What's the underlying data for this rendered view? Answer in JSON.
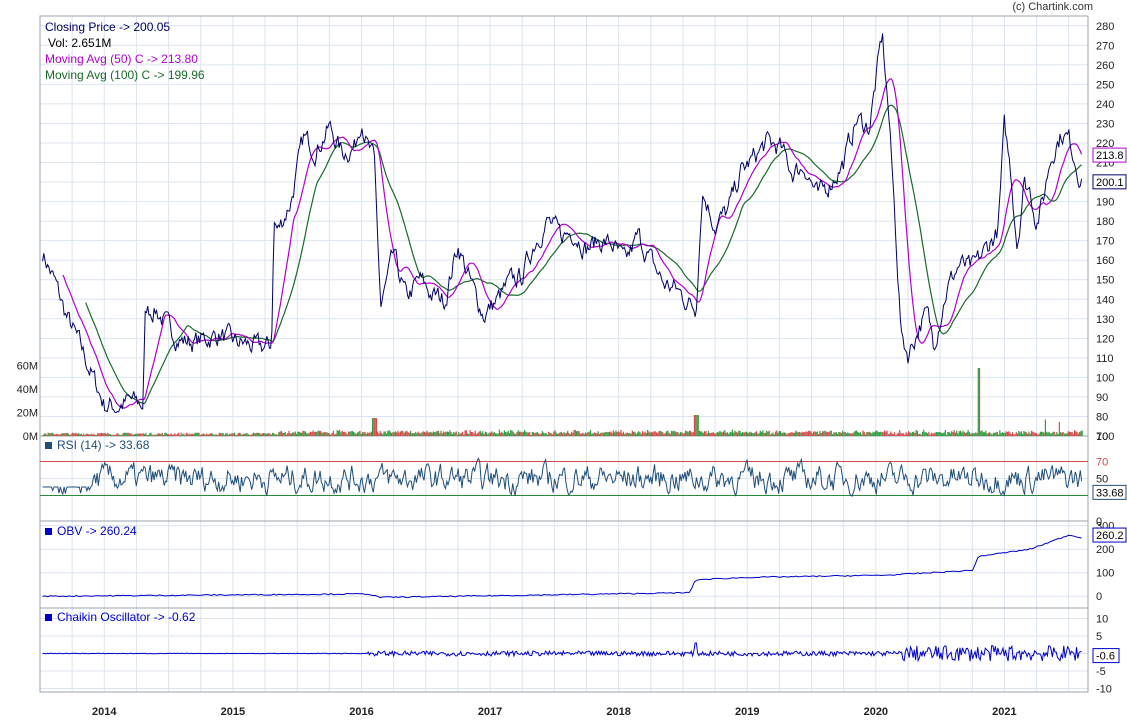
{
  "copyright": "(c) Chartink.com",
  "colors": {
    "price": "#000066",
    "ma50": "#b000d0",
    "ma100": "#1a6a2a",
    "rsi": "#1f4e79",
    "obv": "#0000cc",
    "chaikin": "#0000cc",
    "grid": "#dce4ef",
    "volume_up": "#2e9e3e",
    "volume_down": "#d64a4a",
    "overbought": "#d64a4a",
    "oversold": "#2a8a3a"
  },
  "legend": {
    "close": "Closing Price -> 200.05",
    "vol": "Vol: 2.651M",
    "ma50": "Moving Avg (50) C -> 213.80",
    "ma100": "Moving Avg (100) C -> 199.96"
  },
  "rsi_label": "RSI (14) -> 33.68",
  "obv_label": "OBV -> 260.24",
  "chaikin_label": "Chaikin Oscillator -> -0.62",
  "chart_data": [
    {
      "type": "line",
      "panel": "price",
      "ylim": [
        70,
        285
      ],
      "yticks": [
        "280",
        "270",
        "260",
        "250",
        "240",
        "230",
        "220",
        "210",
        "200",
        "190",
        "180",
        "170",
        "160",
        "150",
        "140",
        "130",
        "120",
        "110",
        "100",
        "90",
        "80",
        "70"
      ],
      "volume_ticks": [
        "60M",
        "40M",
        "20M",
        "0M"
      ],
      "x_labels": [
        "2014",
        "2015",
        "2016",
        "2017",
        "2018",
        "2019",
        "2020",
        "2021"
      ],
      "x_range": [
        2013.5,
        2021.65
      ],
      "x": [
        2013.52,
        2013.62,
        2013.7,
        2013.8,
        2013.9,
        2014.0,
        2014.1,
        2014.2,
        2014.3,
        2014.32,
        2014.4,
        2014.5,
        2014.6,
        2014.7,
        2014.8,
        2014.9,
        2015.0,
        2015.1,
        2015.2,
        2015.3,
        2015.32,
        2015.35,
        2015.45,
        2015.55,
        2015.65,
        2015.75,
        2015.85,
        2015.95,
        2016.0,
        2016.05,
        2016.1,
        2016.15,
        2016.25,
        2016.35,
        2016.45,
        2016.55,
        2016.65,
        2016.75,
        2016.85,
        2016.95,
        2017.05,
        2017.15,
        2017.25,
        2017.35,
        2017.45,
        2017.55,
        2017.65,
        2017.75,
        2017.85,
        2017.95,
        2018.05,
        2018.15,
        2018.25,
        2018.35,
        2018.45,
        2018.55,
        2018.6,
        2018.65,
        2018.75,
        2018.85,
        2018.95,
        2019.05,
        2019.15,
        2019.25,
        2019.35,
        2019.45,
        2019.55,
        2019.65,
        2019.75,
        2019.85,
        2019.95,
        2020.05,
        2020.1,
        2020.15,
        2020.2,
        2020.25,
        2020.35,
        2020.4,
        2020.45,
        2020.55,
        2020.65,
        2020.75,
        2020.85,
        2020.95,
        2021.0,
        2021.05,
        2021.1,
        2021.15,
        2021.2,
        2021.25,
        2021.3,
        2021.35,
        2021.4,
        2021.45,
        2021.5,
        2021.55,
        2021.6
      ],
      "series": [
        {
          "name": "Closing Price",
          "values": [
            164,
            148,
            132,
            118,
            102,
            86,
            85,
            88,
            86,
            134,
            135,
            125,
            119,
            118,
            120,
            122,
            118,
            117,
            115,
            116,
            180,
            175,
            190,
            222,
            217,
            228,
            215,
            218,
            234,
            218,
            210,
            136,
            162,
            140,
            150,
            142,
            140,
            168,
            148,
            132,
            139,
            148,
            152,
            170,
            180,
            172,
            175,
            166,
            170,
            168,
            158,
            172,
            160,
            148,
            145,
            138,
            135,
            196,
            178,
            185,
            205,
            212,
            220,
            218,
            205,
            208,
            192,
            200,
            210,
            232,
            228,
            275,
            235,
            180,
            120,
            112,
            128,
            132,
            118,
            145,
            158,
            155,
            165,
            175,
            228,
            205,
            168,
            200,
            196,
            180,
            190,
            210,
            220,
            225,
            222,
            212,
            200
          ]
        },
        {
          "name": "Moving Avg (50) C",
          "values": [
            null,
            null,
            null,
            118,
            108,
            93,
            84,
            84,
            84,
            86,
            108,
            125,
            126,
            121,
            119,
            120,
            119,
            118,
            117,
            117,
            118,
            135,
            160,
            185,
            205,
            215,
            222,
            219,
            220,
            224,
            219,
            196,
            165,
            147,
            142,
            142,
            143,
            150,
            154,
            148,
            143,
            141,
            146,
            155,
            165,
            172,
            173,
            172,
            170,
            168,
            164,
            164,
            162,
            156,
            150,
            143,
            140,
            152,
            168,
            178,
            188,
            196,
            207,
            215,
            214,
            210,
            207,
            204,
            202,
            210,
            220,
            240,
            245,
            220,
            170,
            130,
            120,
            122,
            126,
            132,
            142,
            150,
            155,
            160,
            175,
            196,
            200,
            190,
            192,
            190,
            190,
            197,
            205,
            214,
            220,
            218,
            214
          ]
        },
        {
          "name": "Moving Avg (100) C",
          "values": [
            null,
            null,
            null,
            null,
            null,
            null,
            null,
            null,
            null,
            null,
            null,
            null,
            null,
            null,
            null,
            null,
            null,
            null,
            null,
            null,
            null,
            null,
            null,
            null,
            null,
            null,
            null,
            null,
            null,
            null,
            null,
            null,
            null,
            null,
            null,
            null,
            null,
            null,
            null,
            null,
            null,
            null,
            null,
            null,
            null,
            null,
            null,
            null,
            null,
            null,
            null,
            null,
            null,
            null,
            null,
            null,
            null,
            null,
            null,
            null,
            null,
            null,
            null,
            null,
            null,
            null,
            null,
            null,
            null,
            null,
            null,
            null,
            null,
            null,
            null,
            null,
            null,
            null,
            null,
            null,
            null,
            null,
            null,
            null,
            null,
            null,
            null,
            null,
            null,
            null,
            null,
            null,
            null,
            null,
            null,
            null,
            null
          ]
        }
      ]
    },
    {
      "type": "line",
      "panel": "rsi",
      "ylim": [
        0,
        100
      ],
      "yticks": [
        "100",
        "70",
        "50",
        "30",
        "0"
      ],
      "overbought": 70,
      "oversold": 30,
      "last_value_label": "33.68"
    },
    {
      "type": "line",
      "panel": "obv",
      "ylim": [
        -50,
        320
      ],
      "yticks": [
        "300",
        "200",
        "100",
        "0"
      ],
      "last_value_label": "260.2"
    },
    {
      "type": "line",
      "panel": "chaikin",
      "ylim": [
        -11,
        13
      ],
      "yticks": [
        "10",
        "5",
        "0",
        "-5",
        "-10"
      ],
      "last_value_label": "-0.6"
    }
  ],
  "price_last_labels": [
    "213.8",
    "200.1"
  ]
}
